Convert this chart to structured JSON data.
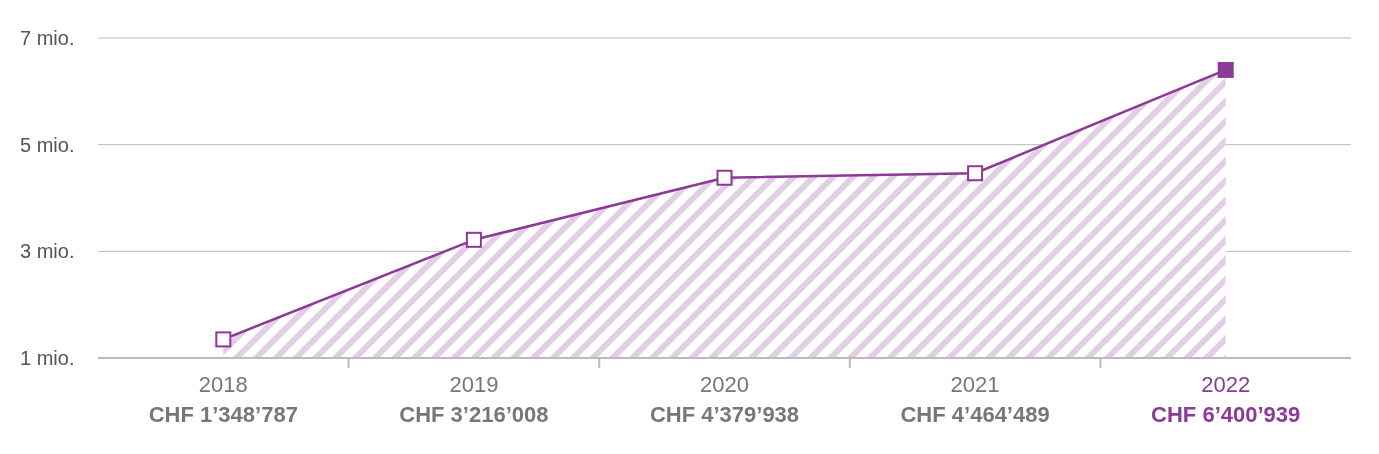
{
  "chart_data": {
    "type": "area",
    "categories": [
      "2018",
      "2019",
      "2020",
      "2021",
      "2022"
    ],
    "series": [
      {
        "color": "#8b3a96",
        "values": [
          1.348787,
          3.216008,
          4.379938,
          4.464489,
          6.400939
        ],
        "colors": [
          "#ffffff",
          "#ffffff",
          "#ffffff",
          "#ffffff",
          "#8b3a96"
        ],
        "value_labels": [
          "CHF 1’348’787",
          "CHF 3’216’008",
          "CHF 4’379’938",
          "CHF 4’464’489",
          "CHF 6’400’939"
        ]
      }
    ],
    "ylim": [
      1,
      7
    ],
    "yticks": [
      {
        "value": 1,
        "label": "1 mio."
      },
      {
        "value": 3,
        "label": "3 mio."
      },
      {
        "value": 5,
        "label": "5 mio."
      },
      {
        "value": 7,
        "label": "7 mio."
      }
    ],
    "grid": "y",
    "legend": false,
    "marker": "square",
    "line_style": "solid"
  }
}
